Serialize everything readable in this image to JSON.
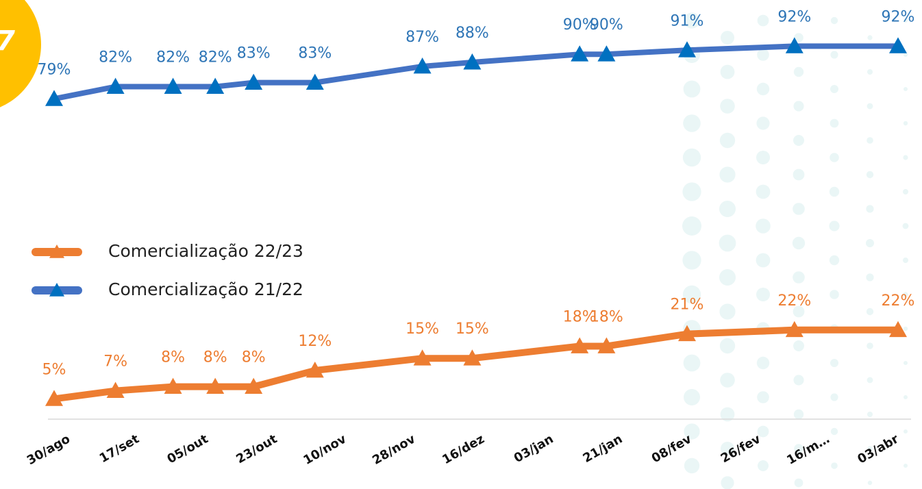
{
  "badge": "7",
  "chart_data": {
    "type": "line",
    "x": [
      0,
      16,
      31,
      42,
      52,
      68,
      96,
      109,
      137,
      144,
      165,
      193,
      220
    ],
    "xlim": [
      -2,
      223
    ],
    "xticks": [
      {
        "value": 0,
        "label": "30/ago"
      },
      {
        "value": 18,
        "label": "17/set"
      },
      {
        "value": 36,
        "label": "05/out"
      },
      {
        "value": 54,
        "label": "23/out"
      },
      {
        "value": 72,
        "label": "10/nov"
      },
      {
        "value": 90,
        "label": "28/nov"
      },
      {
        "value": 108,
        "label": "16/dez"
      },
      {
        "value": 126,
        "label": "03/jan"
      },
      {
        "value": 144,
        "label": "21/jan"
      },
      {
        "value": 162,
        "label": "08/fev"
      },
      {
        "value": 180,
        "label": "26/fev"
      },
      {
        "value": 198,
        "label": "16/m…"
      },
      {
        "value": 216,
        "label": "03/abr"
      }
    ],
    "ylim": [
      0,
      100
    ],
    "legend": "left",
    "series": [
      {
        "name": "Comercialização 22/23",
        "color": "#ED7D31",
        "values": [
          5,
          7,
          8,
          8,
          8,
          12,
          15,
          15,
          18,
          18,
          21,
          22,
          22
        ],
        "value_labels": [
          "5%",
          "7%",
          "8%",
          "8%",
          "8%",
          "12%",
          "15%",
          "15%",
          "18%",
          "18%",
          "21%",
          "22%",
          "22%"
        ]
      },
      {
        "name": "Comercialização 21/22",
        "color": "#4472C4",
        "values": [
          79,
          82,
          82,
          82,
          83,
          83,
          87,
          88,
          90,
          90,
          91,
          92,
          92
        ],
        "value_labels": [
          "79%",
          "82%",
          "82%",
          "82%",
          "83%",
          "83%",
          "87%",
          "88%",
          "90%",
          "90%",
          "91%",
          "92%",
          "92%"
        ]
      }
    ]
  }
}
